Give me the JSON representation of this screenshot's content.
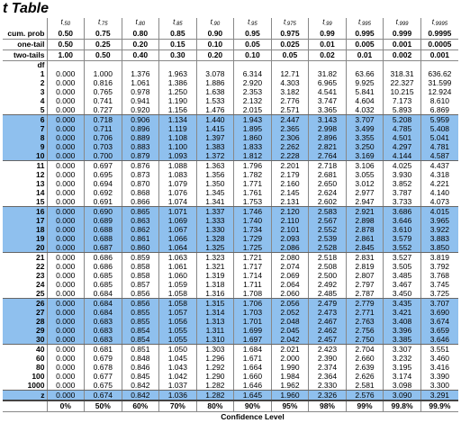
{
  "title": "t Table",
  "t_symbol": "t",
  "subscripts": [
    ".50",
    ".75",
    ".80",
    ".85",
    ".90",
    ".95",
    ".975",
    ".99",
    ".995",
    ".999",
    ".9995"
  ],
  "header_rows": [
    {
      "label": "cum. prob",
      "values": [
        "0.50",
        "0.75",
        "0.80",
        "0.85",
        "0.90",
        "0.95",
        "0.975",
        "0.99",
        "0.995",
        "0.999",
        "0.9995"
      ]
    },
    {
      "label": "one-tail",
      "values": [
        "0.50",
        "0.25",
        "0.20",
        "0.15",
        "0.10",
        "0.05",
        "0.025",
        "0.01",
        "0.005",
        "0.001",
        "0.0005"
      ]
    },
    {
      "label": "two-tails",
      "values": [
        "1.00",
        "0.50",
        "0.40",
        "0.30",
        "0.20",
        "0.10",
        "0.05",
        "0.02",
        "0.01",
        "0.002",
        "0.001"
      ]
    }
  ],
  "df_label": "df",
  "rows": [
    {
      "df": "1",
      "values": [
        "0.000",
        "1.000",
        "1.376",
        "1.963",
        "3.078",
        "6.314",
        "12.71",
        "31.82",
        "63.66",
        "318.31",
        "636.62"
      ]
    },
    {
      "df": "2",
      "values": [
        "0.000",
        "0.816",
        "1.061",
        "1.386",
        "1.886",
        "2.920",
        "4.303",
        "6.965",
        "9.925",
        "22.327",
        "31.599"
      ]
    },
    {
      "df": "3",
      "values": [
        "0.000",
        "0.765",
        "0.978",
        "1.250",
        "1.638",
        "2.353",
        "3.182",
        "4.541",
        "5.841",
        "10.215",
        "12.924"
      ]
    },
    {
      "df": "4",
      "values": [
        "0.000",
        "0.741",
        "0.941",
        "1.190",
        "1.533",
        "2.132",
        "2.776",
        "3.747",
        "4.604",
        "7.173",
        "8.610"
      ]
    },
    {
      "df": "5",
      "values": [
        "0.000",
        "0.727",
        "0.920",
        "1.156",
        "1.476",
        "2.015",
        "2.571",
        "3.365",
        "4.032",
        "5.893",
        "6.869"
      ]
    },
    {
      "df": "6",
      "values": [
        "0.000",
        "0.718",
        "0.906",
        "1.134",
        "1.440",
        "1.943",
        "2.447",
        "3.143",
        "3.707",
        "5.208",
        "5.959"
      ]
    },
    {
      "df": "7",
      "values": [
        "0.000",
        "0.711",
        "0.896",
        "1.119",
        "1.415",
        "1.895",
        "2.365",
        "2.998",
        "3.499",
        "4.785",
        "5.408"
      ]
    },
    {
      "df": "8",
      "values": [
        "0.000",
        "0.706",
        "0.889",
        "1.108",
        "1.397",
        "1.860",
        "2.306",
        "2.896",
        "3.355",
        "4.501",
        "5.041"
      ]
    },
    {
      "df": "9",
      "values": [
        "0.000",
        "0.703",
        "0.883",
        "1.100",
        "1.383",
        "1.833",
        "2.262",
        "2.821",
        "3.250",
        "4.297",
        "4.781"
      ]
    },
    {
      "df": "10",
      "values": [
        "0.000",
        "0.700",
        "0.879",
        "1.093",
        "1.372",
        "1.812",
        "2.228",
        "2.764",
        "3.169",
        "4.144",
        "4.587"
      ]
    },
    {
      "df": "11",
      "values": [
        "0.000",
        "0.697",
        "0.876",
        "1.088",
        "1.363",
        "1.796",
        "2.201",
        "2.718",
        "3.106",
        "4.025",
        "4.437"
      ]
    },
    {
      "df": "12",
      "values": [
        "0.000",
        "0.695",
        "0.873",
        "1.083",
        "1.356",
        "1.782",
        "2.179",
        "2.681",
        "3.055",
        "3.930",
        "4.318"
      ]
    },
    {
      "df": "13",
      "values": [
        "0.000",
        "0.694",
        "0.870",
        "1.079",
        "1.350",
        "1.771",
        "2.160",
        "2.650",
        "3.012",
        "3.852",
        "4.221"
      ]
    },
    {
      "df": "14",
      "values": [
        "0.000",
        "0.692",
        "0.868",
        "1.076",
        "1.345",
        "1.761",
        "2.145",
        "2.624",
        "2.977",
        "3.787",
        "4.140"
      ]
    },
    {
      "df": "15",
      "values": [
        "0.000",
        "0.691",
        "0.866",
        "1.074",
        "1.341",
        "1.753",
        "2.131",
        "2.602",
        "2.947",
        "3.733",
        "4.073"
      ]
    },
    {
      "df": "16",
      "values": [
        "0.000",
        "0.690",
        "0.865",
        "1.071",
        "1.337",
        "1.746",
        "2.120",
        "2.583",
        "2.921",
        "3.686",
        "4.015"
      ]
    },
    {
      "df": "17",
      "values": [
        "0.000",
        "0.689",
        "0.863",
        "1.069",
        "1.333",
        "1.740",
        "2.110",
        "2.567",
        "2.898",
        "3.646",
        "3.965"
      ]
    },
    {
      "df": "18",
      "values": [
        "0.000",
        "0.688",
        "0.862",
        "1.067",
        "1.330",
        "1.734",
        "2.101",
        "2.552",
        "2.878",
        "3.610",
        "3.922"
      ]
    },
    {
      "df": "19",
      "values": [
        "0.000",
        "0.688",
        "0.861",
        "1.066",
        "1.328",
        "1.729",
        "2.093",
        "2.539",
        "2.861",
        "3.579",
        "3.883"
      ]
    },
    {
      "df": "20",
      "values": [
        "0.000",
        "0.687",
        "0.860",
        "1.064",
        "1.325",
        "1.725",
        "2.086",
        "2.528",
        "2.845",
        "3.552",
        "3.850"
      ]
    },
    {
      "df": "21",
      "values": [
        "0.000",
        "0.686",
        "0.859",
        "1.063",
        "1.323",
        "1.721",
        "2.080",
        "2.518",
        "2.831",
        "3.527",
        "3.819"
      ]
    },
    {
      "df": "22",
      "values": [
        "0.000",
        "0.686",
        "0.858",
        "1.061",
        "1.321",
        "1.717",
        "2.074",
        "2.508",
        "2.819",
        "3.505",
        "3.792"
      ]
    },
    {
      "df": "23",
      "values": [
        "0.000",
        "0.685",
        "0.858",
        "1.060",
        "1.319",
        "1.714",
        "2.069",
        "2.500",
        "2.807",
        "3.485",
        "3.768"
      ]
    },
    {
      "df": "24",
      "values": [
        "0.000",
        "0.685",
        "0.857",
        "1.059",
        "1.318",
        "1.711",
        "2.064",
        "2.492",
        "2.797",
        "3.467",
        "3.745"
      ]
    },
    {
      "df": "25",
      "values": [
        "0.000",
        "0.684",
        "0.856",
        "1.058",
        "1.316",
        "1.708",
        "2.060",
        "2.485",
        "2.787",
        "3.450",
        "3.725"
      ]
    },
    {
      "df": "26",
      "values": [
        "0.000",
        "0.684",
        "0.856",
        "1.058",
        "1.315",
        "1.706",
        "2.056",
        "2.479",
        "2.779",
        "3.435",
        "3.707"
      ]
    },
    {
      "df": "27",
      "values": [
        "0.000",
        "0.684",
        "0.855",
        "1.057",
        "1.314",
        "1.703",
        "2.052",
        "2.473",
        "2.771",
        "3.421",
        "3.690"
      ]
    },
    {
      "df": "28",
      "values": [
        "0.000",
        "0.683",
        "0.855",
        "1.056",
        "1.313",
        "1.701",
        "2.048",
        "2.467",
        "2.763",
        "3.408",
        "3.674"
      ]
    },
    {
      "df": "29",
      "values": [
        "0.000",
        "0.683",
        "0.854",
        "1.055",
        "1.311",
        "1.699",
        "2.045",
        "2.462",
        "2.756",
        "3.396",
        "3.659"
      ]
    },
    {
      "df": "30",
      "values": [
        "0.000",
        "0.683",
        "0.854",
        "1.055",
        "1.310",
        "1.697",
        "2.042",
        "2.457",
        "2.750",
        "3.385",
        "3.646"
      ]
    },
    {
      "df": "40",
      "values": [
        "0.000",
        "0.681",
        "0.851",
        "1.050",
        "1.303",
        "1.684",
        "2.021",
        "2.423",
        "2.704",
        "3.307",
        "3.551"
      ]
    },
    {
      "df": "60",
      "values": [
        "0.000",
        "0.679",
        "0.848",
        "1.045",
        "1.296",
        "1.671",
        "2.000",
        "2.390",
        "2.660",
        "3.232",
        "3.460"
      ]
    },
    {
      "df": "80",
      "values": [
        "0.000",
        "0.678",
        "0.846",
        "1.043",
        "1.292",
        "1.664",
        "1.990",
        "2.374",
        "2.639",
        "3.195",
        "3.416"
      ]
    },
    {
      "df": "100",
      "values": [
        "0.000",
        "0.677",
        "0.845",
        "1.042",
        "1.290",
        "1.660",
        "1.984",
        "2.364",
        "2.626",
        "3.174",
        "3.390"
      ]
    },
    {
      "df": "1000",
      "values": [
        "0.000",
        "0.675",
        "0.842",
        "1.037",
        "1.282",
        "1.646",
        "1.962",
        "2.330",
        "2.581",
        "3.098",
        "3.300"
      ]
    }
  ],
  "z_row": {
    "label": "z",
    "values": [
      "0.000",
      "0.674",
      "0.842",
      "1.036",
      "1.282",
      "1.645",
      "1.960",
      "2.326",
      "2.576",
      "3.090",
      "3.291"
    ]
  },
  "confidence": {
    "values": [
      "0%",
      "50%",
      "60%",
      "70%",
      "80%",
      "90%",
      "95%",
      "98%",
      "99%",
      "99.8%",
      "99.9%"
    ],
    "label": "Confidence Level"
  }
}
